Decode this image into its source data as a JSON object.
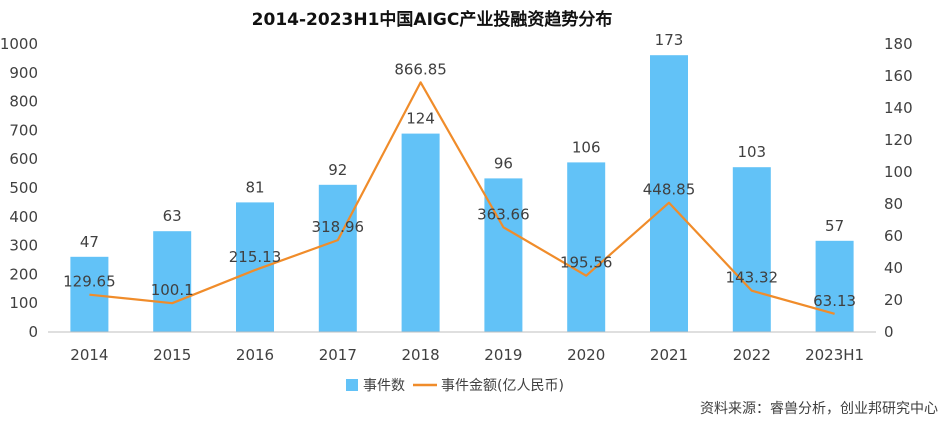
{
  "colors": {
    "bar": "#62c2f7",
    "line": "#f08c2a",
    "axis": "#bfbfbf",
    "text": "#404040"
  },
  "chart_data": {
    "type": "bar",
    "title": "2014-2023H1中国AIGC产业投融资趋势分布",
    "categories": [
      "2014",
      "2015",
      "2016",
      "2017",
      "2018",
      "2019",
      "2020",
      "2021",
      "2022",
      "2023H1"
    ],
    "series": [
      {
        "name": "事件数",
        "type": "bar",
        "axis": "right",
        "values": [
          47,
          63,
          81,
          92,
          124,
          96,
          106,
          173,
          103,
          57
        ]
      },
      {
        "name": "事件金额(亿人民币)",
        "type": "line",
        "axis": "left",
        "values": [
          129.65,
          100.1,
          215.13,
          318.96,
          866.85,
          363.66,
          195.56,
          448.85,
          143.32,
          63.13
        ]
      }
    ],
    "y_left": {
      "ylim": [
        0,
        1000
      ],
      "ticks": [
        "0",
        "100",
        "200",
        "300",
        "400",
        "500",
        "600",
        "700",
        "800",
        "900",
        "1000"
      ]
    },
    "y_right": {
      "ylim": [
        0,
        180
      ],
      "ticks": [
        "0",
        "20",
        "40",
        "60",
        "80",
        "100",
        "120",
        "140",
        "160",
        "180"
      ]
    },
    "bar_labels": [
      "47",
      "63",
      "81",
      "92",
      "124",
      "96",
      "106",
      "173",
      "103",
      "57"
    ],
    "line_labels": [
      "129.65",
      "100.1",
      "215.13",
      "318.96",
      "866.85",
      "363.66",
      "195.56",
      "448.85",
      "143.32",
      "63.13"
    ],
    "legend": {
      "position": "bottom",
      "items": [
        "事件数",
        "事件金额(亿人民币)"
      ]
    },
    "grid": false
  },
  "source": "资料来源：睿兽分析，创业邦研究中心"
}
